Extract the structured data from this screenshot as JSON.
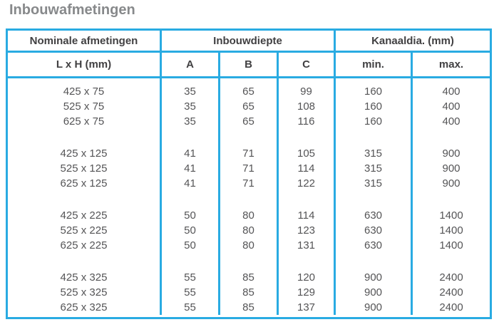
{
  "title": "Inbouwafmetingen",
  "colors": {
    "border": "#29ABE2",
    "title_text": "#87898B",
    "header_text": "#414042",
    "body_text": "#545456"
  },
  "table": {
    "header": {
      "group1": "Nominale afmetingen",
      "group2": "Inbouwdiepte",
      "group3": "Kanaaldia. (mm)"
    },
    "subheaders": [
      "L x H (mm)",
      "A",
      "B",
      "C",
      "min.",
      "max."
    ],
    "groups": [
      {
        "rows": [
          [
            "425 x 75",
            "35",
            "65",
            "99",
            "160",
            "400"
          ],
          [
            "525 x 75",
            "35",
            "65",
            "108",
            "160",
            "400"
          ],
          [
            "625 x 75",
            "35",
            "65",
            "116",
            "160",
            "400"
          ]
        ]
      },
      {
        "rows": [
          [
            "425 x 125",
            "41",
            "71",
            "105",
            "315",
            "900"
          ],
          [
            "525 x 125",
            "41",
            "71",
            "114",
            "315",
            "900"
          ],
          [
            "625 x 125",
            "41",
            "71",
            "122",
            "315",
            "900"
          ]
        ]
      },
      {
        "rows": [
          [
            "425 x 225",
            "50",
            "80",
            "114",
            "630",
            "1400"
          ],
          [
            "525 x 225",
            "50",
            "80",
            "123",
            "630",
            "1400"
          ],
          [
            "625 x 225",
            "50",
            "80",
            "131",
            "630",
            "1400"
          ]
        ]
      },
      {
        "rows": [
          [
            "425 x 325",
            "55",
            "85",
            "120",
            "900",
            "2400"
          ],
          [
            "525 x 325",
            "55",
            "85",
            "129",
            "900",
            "2400"
          ],
          [
            "625 x 325",
            "55",
            "85",
            "137",
            "900",
            "2400"
          ]
        ]
      }
    ]
  }
}
